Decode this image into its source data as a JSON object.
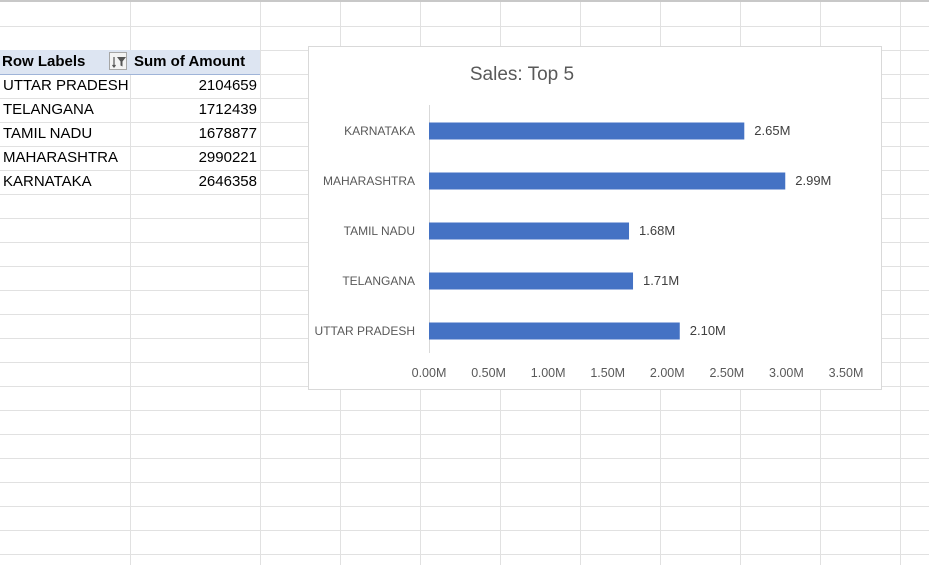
{
  "pivot": {
    "header_row_labels": "Row Labels",
    "header_sum": "Sum of Amount",
    "rows": [
      {
        "label": "UTTAR PRADESH",
        "value": "2104659"
      },
      {
        "label": "TELANGANA",
        "value": "1712439"
      },
      {
        "label": "TAMIL NADU",
        "value": "1678877"
      },
      {
        "label": "MAHARASHTRA",
        "value": "2990221"
      },
      {
        "label": "KARNATAKA",
        "value": "2646358"
      }
    ]
  },
  "chart_data": {
    "type": "bar",
    "orientation": "horizontal",
    "title": "Sales: Top 5",
    "categories": [
      "KARNATAKA",
      "MAHARASHTRA",
      "TAMIL NADU",
      "TELANGANA",
      "UTTAR PRADESH"
    ],
    "values": [
      2646358,
      2990221,
      1678877,
      1712439,
      2104659
    ],
    "data_labels": [
      "2.65M",
      "2.99M",
      "1.68M",
      "1.71M",
      "2.10M"
    ],
    "xlim": [
      0,
      3500000
    ],
    "x_ticks": [
      0,
      500000,
      1000000,
      1500000,
      2000000,
      2500000,
      3000000,
      3500000
    ],
    "x_tick_labels": [
      "0.00M",
      "0.50M",
      "1.00M",
      "1.50M",
      "2.00M",
      "2.50M",
      "3.00M",
      "3.50M"
    ],
    "bar_color": "#4472c4",
    "grid": false,
    "legend": "none"
  }
}
